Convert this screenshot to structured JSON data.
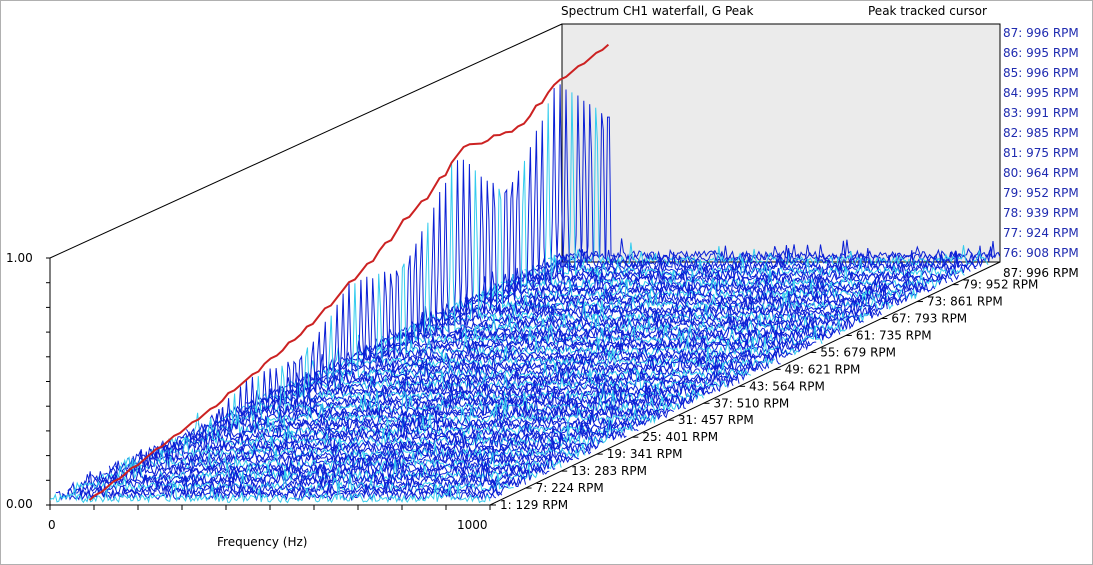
{
  "chart_data": {
    "type": "waterfall",
    "title": "Spectrum CH1 waterfall,  G Peak",
    "cursor_label": "Peak tracked cursor",
    "xlabel": "Frequency (Hz)",
    "x_ticks": [
      "0",
      "1000"
    ],
    "xlim": [
      0,
      1000
    ],
    "y_ticks": [
      "0.00",
      "1.00"
    ],
    "ylim": [
      0,
      1
    ],
    "z_axis_labels": [
      "1: 129 RPM",
      "7: 224 RPM",
      "13: 283 RPM",
      "19: 341 RPM",
      "25: 401 RPM",
      "31: 457 RPM",
      "37: 510 RPM",
      "43: 564 RPM",
      "49: 621 RPM",
      "55: 679 RPM",
      "61: 735 RPM",
      "67: 793 RPM",
      "73: 861 RPM",
      "79: 952 RPM"
    ],
    "cursor_trace_labels": [
      "87: 996 RPM",
      "86: 995 RPM",
      "85: 996 RPM",
      "84: 995 RPM",
      "83: 991 RPM",
      "82: 985 RPM",
      "81: 975 RPM",
      "80: 964 RPM",
      "79: 952 RPM",
      "78: 939 RPM",
      "77: 924 RPM",
      "76: 908 RPM",
      "87: 996 RPM"
    ],
    "traces": 87,
    "peak_track": [
      0.02,
      0.03,
      0.04,
      0.05,
      0.06,
      0.07,
      0.08,
      0.09,
      0.1,
      0.11,
      0.12,
      0.13,
      0.14,
      0.15,
      0.16,
      0.17,
      0.19,
      0.2,
      0.21,
      0.22,
      0.24,
      0.25,
      0.26,
      0.28,
      0.29,
      0.31,
      0.33,
      0.35,
      0.37,
      0.39,
      0.41,
      0.43,
      0.45,
      0.48,
      0.5,
      0.53,
      0.56,
      0.58,
      0.6,
      0.63,
      0.66,
      0.7,
      0.72,
      0.74,
      0.73,
      0.72,
      0.73,
      0.72,
      0.71,
      0.72,
      0.74,
      0.77,
      0.8,
      0.82,
      0.83,
      0.84,
      0.85,
      0.86,
      0.87,
      0.88
    ],
    "colors": {
      "trace": "#0a1fd6",
      "highlight": "#33ccee",
      "peak_line": "#cc2222",
      "wall": "#ebebeb"
    }
  }
}
